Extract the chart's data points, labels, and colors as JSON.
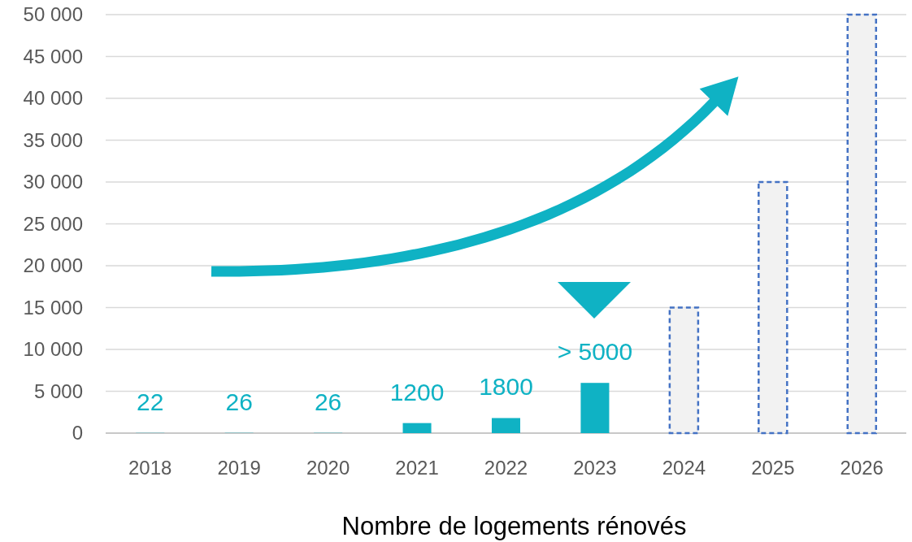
{
  "chart_data": {
    "type": "bar",
    "xlabel": "Nombre de logements rénovés",
    "categories": [
      "2018",
      "2019",
      "2020",
      "2021",
      "2022",
      "2023",
      "2024",
      "2025",
      "2026"
    ],
    "series": [
      {
        "color": "#0fb2c4",
        "values": [
          22,
          26,
          26,
          1200,
          1800,
          6000,
          null,
          null,
          null
        ],
        "value_labels": [
          "22",
          "26",
          "26",
          "1200",
          "1800",
          "> 5000",
          null,
          null,
          null
        ]
      },
      {
        "color": "#f2f2f2",
        "line_style": "dashed",
        "values": [
          null,
          null,
          null,
          null,
          null,
          null,
          15000,
          30000,
          50000
        ]
      }
    ],
    "ylim": [
      0,
      50000
    ],
    "yticks": [
      {
        "value": 0,
        "label": "0"
      },
      {
        "value": 5000,
        "label": "5 000"
      },
      {
        "value": 10000,
        "label": "10 000"
      },
      {
        "value": 15000,
        "label": "15 000"
      },
      {
        "value": 20000,
        "label": "20 000"
      },
      {
        "value": 25000,
        "label": "25 000"
      },
      {
        "value": 30000,
        "label": "30 000"
      },
      {
        "value": 35000,
        "label": "35 000"
      },
      {
        "value": 40000,
        "label": "40 000"
      },
      {
        "value": 45000,
        "label": "45 000"
      },
      {
        "value": 50000,
        "label": "50 000"
      }
    ],
    "grid": "y"
  }
}
